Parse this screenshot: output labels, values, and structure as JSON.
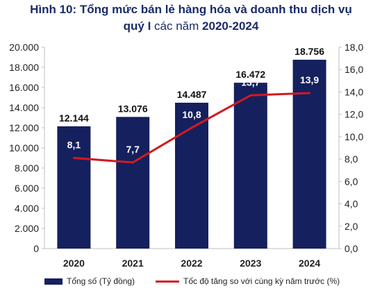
{
  "title": {
    "line1_bold": "Hình 10",
    "line1_rest": ": Tổng mức bán lẻ hàng hóa và doanh thu dịch vụ",
    "line2_bold_a": "quý I",
    "line2_mid": " các năm ",
    "line2_bold_b": "2020-2024"
  },
  "chart_data": {
    "type": "bar",
    "categories": [
      "2020",
      "2021",
      "2022",
      "2023",
      "2024"
    ],
    "series": [
      {
        "name": "Tổng số (Tỷ đồng)",
        "type": "bar",
        "axis": "left",
        "values": [
          12144,
          13076,
          14487,
          16472,
          18756
        ],
        "labels": [
          "12.144",
          "13.076",
          "14.487",
          "16.472",
          "18.756"
        ],
        "color": "#15205e"
      },
      {
        "name": "Tốc độ tăng so với cùng kỳ năm trước (%)",
        "type": "line",
        "axis": "right",
        "values": [
          8.1,
          7.7,
          10.8,
          13.7,
          13.9
        ],
        "labels": [
          "8,1",
          "7,7",
          "10,8",
          "13,7",
          "13,9"
        ],
        "color": "#d21a1f"
      }
    ],
    "y_left": {
      "ylim": [
        0,
        20000
      ],
      "ticks": [
        0,
        2000,
        4000,
        6000,
        8000,
        10000,
        12000,
        14000,
        16000,
        18000,
        20000
      ],
      "tick_labels": [
        "0",
        "2.000",
        "4.000",
        "6.000",
        "8.000",
        "10.000",
        "12.000",
        "14.000",
        "16.000",
        "18.000",
        "20.000"
      ]
    },
    "y_right": {
      "ylim": [
        0,
        18
      ],
      "ticks": [
        0,
        2,
        4,
        6,
        8,
        10,
        12,
        14,
        16,
        18
      ],
      "tick_labels": [
        "0,0",
        "2,0",
        "4,0",
        "6,0",
        "8,0",
        "10,0",
        "12,0",
        "14,0",
        "16,0",
        "18,0"
      ]
    },
    "grid": false,
    "legend": "bottom"
  },
  "legend": {
    "bar_label": "Tổng số (Tỷ đồng)",
    "line_label": "Tốc độ tăng so với cùng kỳ năm trước (%)"
  }
}
